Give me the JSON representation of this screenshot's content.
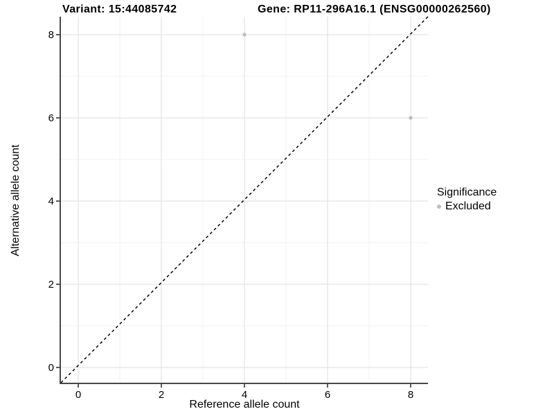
{
  "chart_data": {
    "type": "scatter",
    "title_left": "Variant: 15:44085742",
    "title_right": "Gene: RP11-296A16.1 (ENSG00000262560)",
    "xlabel": "Reference allele count",
    "ylabel": "Alternative allele count",
    "xlim": [
      -0.42,
      8.42
    ],
    "ylim": [
      -0.42,
      8.42
    ],
    "x_major_ticks": [
      0,
      2,
      4,
      6,
      8
    ],
    "y_major_ticks": [
      0,
      2,
      4,
      6,
      8
    ],
    "x_minor_ticks": [
      1,
      3,
      5,
      7
    ],
    "y_minor_ticks": [
      1,
      3,
      5,
      7
    ],
    "grid": true,
    "identity_line": {
      "slope": 1,
      "intercept": 0,
      "style": "dashed",
      "color": "#000000"
    },
    "series": [
      {
        "name": "Excluded",
        "color": "#bdbdbd",
        "points": [
          {
            "x": 4,
            "y": 8
          },
          {
            "x": 8,
            "y": 6
          }
        ]
      }
    ],
    "legend": {
      "position": "right",
      "title": "Significance",
      "entries": [
        {
          "label": "Excluded",
          "color": "#bdbdbd"
        }
      ]
    }
  },
  "colors": {
    "background": "#ffffff",
    "axis_line": "#474747",
    "tick_mark": "#474747",
    "grid_major": "#e3e3e3",
    "grid_minor": "#f1f1f1",
    "text": "#000000"
  }
}
